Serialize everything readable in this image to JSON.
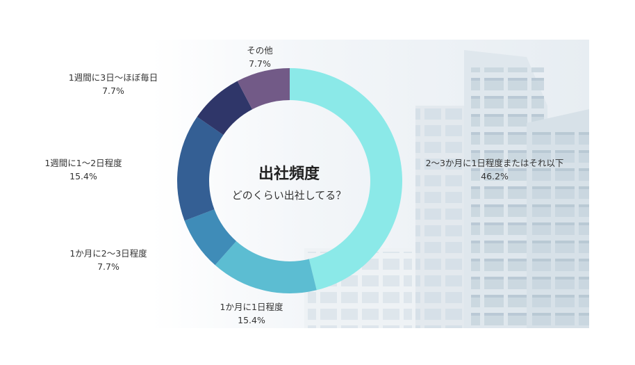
{
  "center": {
    "title": "出社頻度",
    "subtitle": "どのくらい出社してる？"
  },
  "chart_data": {
    "type": "pie",
    "title": "出社頻度",
    "subtitle": "どのくらい出社してる？",
    "hole": true,
    "unit": "%",
    "slices": [
      {
        "label": "2〜3か月に1日程度またはそれ以下",
        "value": 46.2,
        "display": "46.2%",
        "color": "#8BE9E8"
      },
      {
        "label": "1か月に1日程度",
        "value": 15.4,
        "display": "15.4%",
        "color": "#5CBDD2"
      },
      {
        "label": "1か月に2〜3日程度",
        "value": 7.7,
        "display": "7.7%",
        "color": "#3F8CB8"
      },
      {
        "label": "1週間に1〜2日程度",
        "value": 15.4,
        "display": "15.4%",
        "color": "#345F94"
      },
      {
        "label": "1週間に3日〜ほぼ毎日",
        "value": 7.7,
        "display": "7.7%",
        "color": "#2F3669"
      },
      {
        "label": "その他",
        "value": 7.7,
        "display": "7.7%",
        "color": "#725A87"
      }
    ]
  }
}
